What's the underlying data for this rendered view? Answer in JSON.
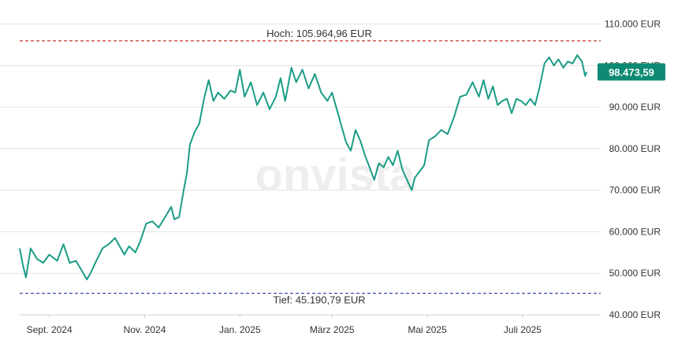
{
  "watermark": "onvista",
  "current_price_label": "98.473,59",
  "high_label": "Hoch: 105.964,96 EUR",
  "low_label": "Tief: 45.190,79 EUR",
  "colors": {
    "line": "#1a9c86",
    "badge": "#0e8a74",
    "high_line": "#c0392b",
    "low_line": "#3b4a9e",
    "grid": "#e3e3e3"
  },
  "chart_data": {
    "type": "line",
    "currency": "EUR",
    "x_domain": [
      "2024-08-13",
      "2025-08-20"
    ],
    "ylim": [
      40000,
      112000
    ],
    "grid": true,
    "y_ticks": [
      {
        "value": 110000,
        "label": "110.000 EUR"
      },
      {
        "value": 100000,
        "label": "100.000 EUR"
      },
      {
        "value": 90000,
        "label": "90.000 EUR"
      },
      {
        "value": 80000,
        "label": "80.000 EUR"
      },
      {
        "value": 70000,
        "label": "70.000 EUR"
      },
      {
        "value": 60000,
        "label": "60.000 EUR"
      },
      {
        "value": 50000,
        "label": "50.000 EUR"
      },
      {
        "value": 40000,
        "label": "40.000 EUR"
      }
    ],
    "x_ticks": [
      {
        "date": "2024-09-01",
        "label": "Sept. 2024"
      },
      {
        "date": "2024-11-01",
        "label": "Nov. 2024"
      },
      {
        "date": "2025-01-01",
        "label": "Jan. 2025"
      },
      {
        "date": "2025-03-01",
        "label": "März 2025"
      },
      {
        "date": "2025-05-01",
        "label": "Mai 2025"
      },
      {
        "date": "2025-07-01",
        "label": "Juli 2025"
      }
    ],
    "high": 105964.96,
    "low": 45190.79,
    "current": 98473.59,
    "series": [
      {
        "points": [
          [
            "2024-08-13",
            56000
          ],
          [
            "2024-08-15",
            52000
          ],
          [
            "2024-08-17",
            49000
          ],
          [
            "2024-08-20",
            56000
          ],
          [
            "2024-08-24",
            53500
          ],
          [
            "2024-08-28",
            52500
          ],
          [
            "2024-09-01",
            54500
          ],
          [
            "2024-09-06",
            53000
          ],
          [
            "2024-09-10",
            57000
          ],
          [
            "2024-09-14",
            52500
          ],
          [
            "2024-09-18",
            53000
          ],
          [
            "2024-09-22",
            50500
          ],
          [
            "2024-09-25",
            48500
          ],
          [
            "2024-09-28",
            50500
          ],
          [
            "2024-10-01",
            53000
          ],
          [
            "2024-10-05",
            56000
          ],
          [
            "2024-10-09",
            57000
          ],
          [
            "2024-10-13",
            58500
          ],
          [
            "2024-10-16",
            56500
          ],
          [
            "2024-10-19",
            54500
          ],
          [
            "2024-10-22",
            56500
          ],
          [
            "2024-10-26",
            55000
          ],
          [
            "2024-10-29",
            57500
          ],
          [
            "2024-11-02",
            62000
          ],
          [
            "2024-11-06",
            62500
          ],
          [
            "2024-11-10",
            61000
          ],
          [
            "2024-11-14",
            63500
          ],
          [
            "2024-11-18",
            66000
          ],
          [
            "2024-11-20",
            63000
          ],
          [
            "2024-11-23",
            63500
          ],
          [
            "2024-11-26",
            70000
          ],
          [
            "2024-11-28",
            74000
          ],
          [
            "2024-11-30",
            81000
          ],
          [
            "2024-12-03",
            84000
          ],
          [
            "2024-12-06",
            86000
          ],
          [
            "2024-12-09",
            92000
          ],
          [
            "2024-12-12",
            96500
          ],
          [
            "2024-12-15",
            91500
          ],
          [
            "2024-12-18",
            93500
          ],
          [
            "2024-12-22",
            92000
          ],
          [
            "2024-12-26",
            94000
          ],
          [
            "2024-12-29",
            93500
          ],
          [
            "2025-01-01",
            99000
          ],
          [
            "2025-01-04",
            92500
          ],
          [
            "2025-01-08",
            96000
          ],
          [
            "2025-01-12",
            90500
          ],
          [
            "2025-01-16",
            93500
          ],
          [
            "2025-01-20",
            89500
          ],
          [
            "2025-01-24",
            92500
          ],
          [
            "2025-01-27",
            97000
          ],
          [
            "2025-01-30",
            91500
          ],
          [
            "2025-02-03",
            99500
          ],
          [
            "2025-02-06",
            96000
          ],
          [
            "2025-02-10",
            99000
          ],
          [
            "2025-02-14",
            94500
          ],
          [
            "2025-02-18",
            98000
          ],
          [
            "2025-02-22",
            93500
          ],
          [
            "2025-02-26",
            91500
          ],
          [
            "2025-03-01",
            93500
          ],
          [
            "2025-03-04",
            89500
          ],
          [
            "2025-03-07",
            85500
          ],
          [
            "2025-03-10",
            81500
          ],
          [
            "2025-03-13",
            79500
          ],
          [
            "2025-03-16",
            84500
          ],
          [
            "2025-03-19",
            82000
          ],
          [
            "2025-03-22",
            78500
          ],
          [
            "2025-03-25",
            75500
          ],
          [
            "2025-03-28",
            72500
          ],
          [
            "2025-03-31",
            76500
          ],
          [
            "2025-04-03",
            75500
          ],
          [
            "2025-04-06",
            78000
          ],
          [
            "2025-04-09",
            76000
          ],
          [
            "2025-04-12",
            79500
          ],
          [
            "2025-04-15",
            75000
          ],
          [
            "2025-04-18",
            72500
          ],
          [
            "2025-04-21",
            70000
          ],
          [
            "2025-04-23",
            73000
          ],
          [
            "2025-04-26",
            74500
          ],
          [
            "2025-04-29",
            76000
          ],
          [
            "2025-05-02",
            82000
          ],
          [
            "2025-05-06",
            83000
          ],
          [
            "2025-05-10",
            84500
          ],
          [
            "2025-05-14",
            83500
          ],
          [
            "2025-05-18",
            87500
          ],
          [
            "2025-05-22",
            92500
          ],
          [
            "2025-05-26",
            93000
          ],
          [
            "2025-05-30",
            96000
          ],
          [
            "2025-06-03",
            92500
          ],
          [
            "2025-06-06",
            96500
          ],
          [
            "2025-06-09",
            92000
          ],
          [
            "2025-06-12",
            95000
          ],
          [
            "2025-06-15",
            90500
          ],
          [
            "2025-06-18",
            91500
          ],
          [
            "2025-06-21",
            92000
          ],
          [
            "2025-06-24",
            88500
          ],
          [
            "2025-06-27",
            92000
          ],
          [
            "2025-06-30",
            91500
          ],
          [
            "2025-07-03",
            90500
          ],
          [
            "2025-07-06",
            92000
          ],
          [
            "2025-07-09",
            90500
          ],
          [
            "2025-07-12",
            95000
          ],
          [
            "2025-07-15",
            100500
          ],
          [
            "2025-07-18",
            102000
          ],
          [
            "2025-07-21",
            100000
          ],
          [
            "2025-07-24",
            101500
          ],
          [
            "2025-07-27",
            99500
          ],
          [
            "2025-07-30",
            101000
          ],
          [
            "2025-08-02",
            100500
          ],
          [
            "2025-08-05",
            102500
          ],
          [
            "2025-08-08",
            101000
          ],
          [
            "2025-08-10",
            97500
          ],
          [
            "2025-08-11",
            98473.59
          ]
        ]
      }
    ]
  }
}
